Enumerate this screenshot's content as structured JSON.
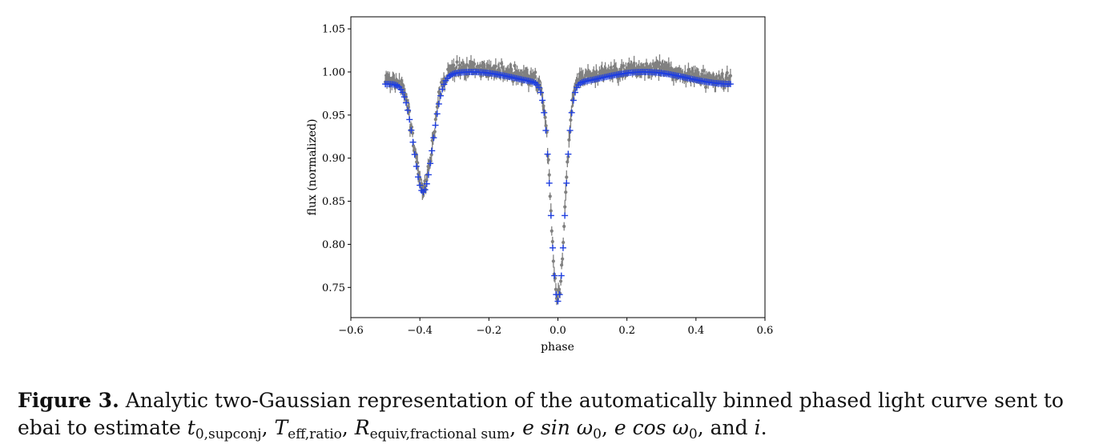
{
  "chart_data": {
    "type": "scatter",
    "xlabel": "phase",
    "ylabel": "flux (normalized)",
    "xlim": [
      -0.6,
      0.6
    ],
    "ylim": [
      0.715,
      1.064
    ],
    "xticks": [
      -0.6,
      -0.4,
      -0.2,
      0.0,
      0.2,
      0.4,
      0.6
    ],
    "xtick_labels": [
      "−0.6",
      "−0.4",
      "−0.2",
      "0.0",
      "0.2",
      "0.4",
      "0.6"
    ],
    "yticks": [
      0.75,
      0.8,
      0.85,
      0.9,
      0.95,
      1.0,
      1.05
    ],
    "ytick_labels": [
      "0.75",
      "0.80",
      "0.85",
      "0.90",
      "0.95",
      "1.00",
      "1.05"
    ],
    "grid": false,
    "colors": {
      "observed": "#808080",
      "model": "#1f3fe0"
    },
    "series": [
      {
        "kind": "observed-binned-points-with-errorbars",
        "x_range": [
          -0.5,
          0.5
        ],
        "baseline": 1.0,
        "minima": [
          {
            "phase": -0.39,
            "flux": 0.865
          },
          {
            "phase": 0.0,
            "flux": 0.745
          }
        ]
      },
      {
        "kind": "two-gaussian-model",
        "marker": "+",
        "x_range": [
          -0.5,
          0.5
        ],
        "baseline": 1.0,
        "gaussians": [
          {
            "mu": -0.39,
            "depth": 0.131,
            "sigma": 0.027
          },
          {
            "mu": 0.0,
            "depth": 0.252,
            "sigma": 0.02
          }
        ],
        "ellipsoidal_amplitude": 0.014,
        "n_points": 201
      }
    ]
  },
  "caption": {
    "label": "Figure 3.",
    "text": "Analytic two-Gaussian representation of the automatically binned phased light curve sent to ebai to estimate",
    "terms": {
      "t0": {
        "base": "t",
        "sub": "0,supconj"
      },
      "teff": {
        "base": "T",
        "sub": "eff,ratio"
      },
      "requiv": {
        "base": "R",
        "sub": "equiv,fractional sum"
      },
      "esin": "e sin ω",
      "esin_sub": "0",
      "ecos": "e cos ω",
      "ecos_sub": "0",
      "and": "and",
      "incl": "i"
    }
  }
}
